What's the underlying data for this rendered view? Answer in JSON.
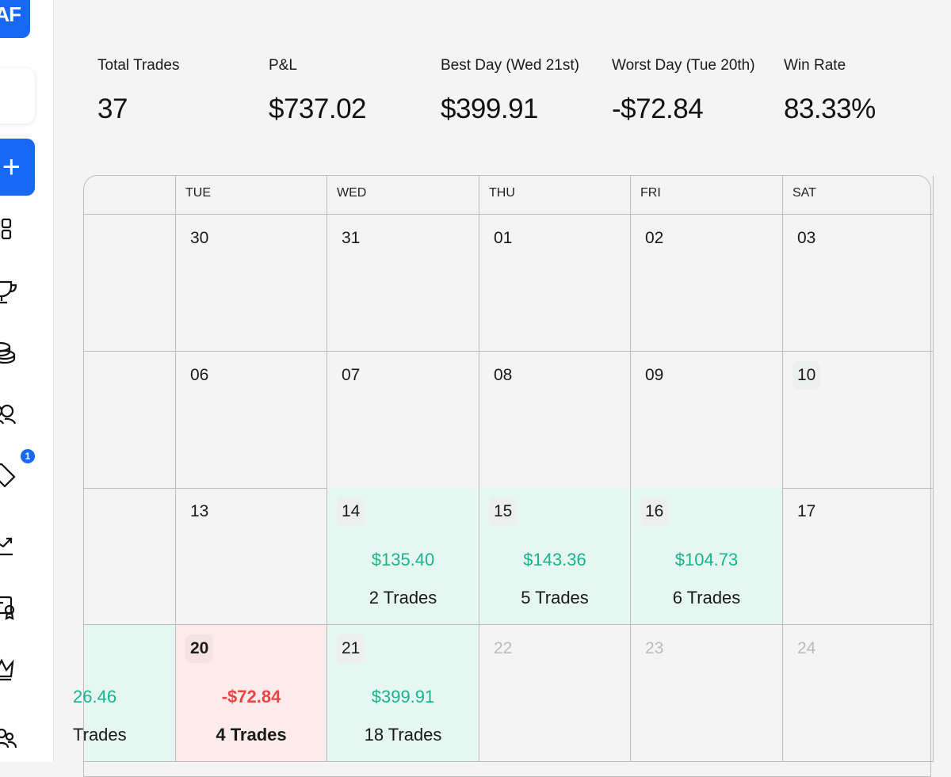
{
  "sidebar": {
    "logo_text": "AF",
    "add_label": "+",
    "icons": [
      "grid-icon",
      "trophy-icon",
      "coins-icon",
      "users-icon",
      "tag-icon",
      "chart-line-icon",
      "certificate-icon",
      "crown-icon",
      "team-icon"
    ],
    "tag_badge": "1"
  },
  "stats": [
    {
      "label": "Total Trades",
      "value": "37"
    },
    {
      "label": "P&L",
      "value": "$737.02"
    },
    {
      "label": "Best Day (Wed 21st)",
      "value": "$399.91"
    },
    {
      "label": "Worst Day (Tue 20th)",
      "value": "-$72.84"
    },
    {
      "label": "Win Rate",
      "value": "83.33%"
    }
  ],
  "calendar": {
    "headers": [
      "",
      "TUE",
      "WED",
      "THU",
      "FRI",
      "SAT"
    ],
    "rows": [
      [
        {
          "day": ""
        },
        {
          "day": "30"
        },
        {
          "day": "31"
        },
        {
          "day": "01"
        },
        {
          "day": "02"
        },
        {
          "day": "03"
        }
      ],
      [
        {
          "day": ""
        },
        {
          "day": "06"
        },
        {
          "day": "07"
        },
        {
          "day": "08"
        },
        {
          "day": "09"
        },
        {
          "day": "10"
        }
      ],
      [
        {
          "day": ""
        },
        {
          "day": "13"
        },
        {
          "day": "14",
          "pnl": "$135.40",
          "trades": "2 Trades"
        },
        {
          "day": "15",
          "pnl": "$143.36",
          "trades": "5 Trades"
        },
        {
          "day": "16",
          "pnl": "$104.73",
          "trades": "6 Trades"
        },
        {
          "day": "17"
        }
      ],
      [
        {
          "day": "",
          "pnl": "26.46",
          "trades": "Trades"
        },
        {
          "day": "20",
          "pnl": "-$72.84",
          "trades": "4 Trades"
        },
        {
          "day": "21",
          "pnl": "$399.91",
          "trades": "18 Trades"
        },
        {
          "day": "22"
        },
        {
          "day": "23"
        },
        {
          "day": "24"
        }
      ]
    ]
  },
  "colors": {
    "accent": "#1668f5",
    "profit": "#1bb488",
    "loss": "#ef4444",
    "profit_bg": "#e6f7f1",
    "loss_bg": "#fdeaea"
  }
}
